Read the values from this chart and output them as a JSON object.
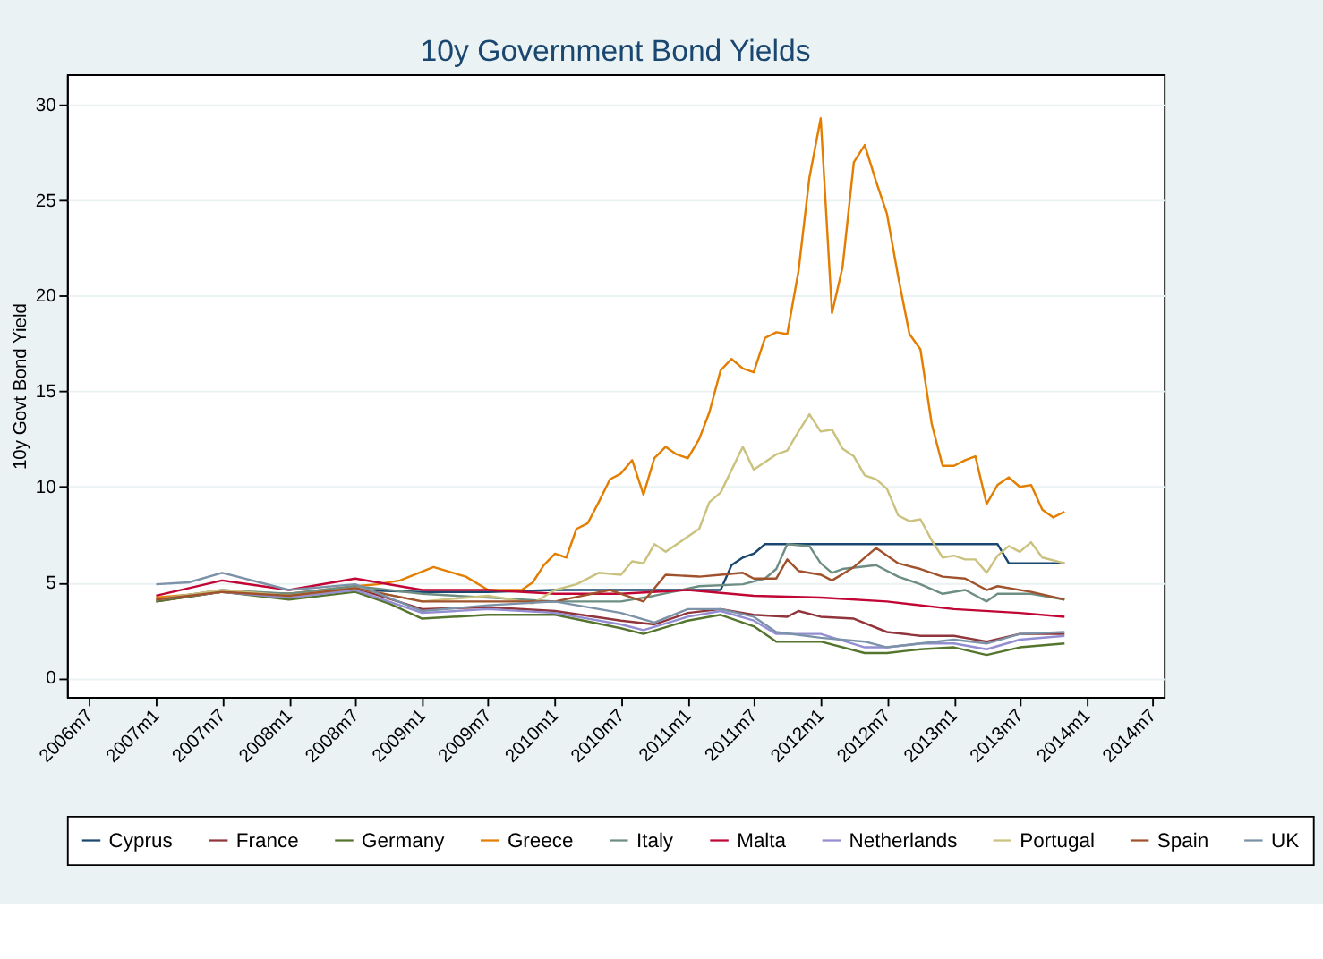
{
  "chart_data": {
    "type": "line",
    "title": "10y Government Bond Yields",
    "ylabel": "10y Govt Bond Yield",
    "xlim": [
      "2006-05",
      "2014-08"
    ],
    "xticks": [
      {
        "value": "2006-07",
        "label": "2006m7"
      },
      {
        "value": "2007-01",
        "label": "2007m1"
      },
      {
        "value": "2007-07",
        "label": "2007m7"
      },
      {
        "value": "2008-01",
        "label": "2008m1"
      },
      {
        "value": "2008-07",
        "label": "2008m7"
      },
      {
        "value": "2009-01",
        "label": "2009m1"
      },
      {
        "value": "2009-07",
        "label": "2009m7"
      },
      {
        "value": "2010-01",
        "label": "2010m1"
      },
      {
        "value": "2010-07",
        "label": "2010m7"
      },
      {
        "value": "2011-01",
        "label": "2011m1"
      },
      {
        "value": "2011-07",
        "label": "2011m7"
      },
      {
        "value": "2012-01",
        "label": "2012m1"
      },
      {
        "value": "2012-07",
        "label": "2012m7"
      },
      {
        "value": "2013-01",
        "label": "2013m1"
      },
      {
        "value": "2013-07",
        "label": "2013m7"
      },
      {
        "value": "2014-01",
        "label": "2014m1"
      },
      {
        "value": "2014-07",
        "label": "2014m7"
      }
    ],
    "ylim": [
      -1,
      31.6
    ],
    "yticks": [
      0,
      5,
      10,
      15,
      20,
      25,
      30
    ],
    "grid": "y",
    "legend": "bottom",
    "line_style": "solid",
    "marker": "none",
    "series": [
      {
        "name": "Cyprus",
        "color": "#1a476f",
        "x": [
          "2007-01",
          "2007-07",
          "2008-01",
          "2008-07",
          "2009-01",
          "2009-07",
          "2010-01",
          "2010-07",
          "2011-01",
          "2011-04",
          "2011-05",
          "2011-06",
          "2011-07",
          "2011-08",
          "2013-05",
          "2013-06",
          "2013-11"
        ],
        "values": [
          4.1,
          4.5,
          4.4,
          4.6,
          4.5,
          4.5,
          4.6,
          4.6,
          4.6,
          4.6,
          5.9,
          6.3,
          6.5,
          7.0,
          7.0,
          6.0,
          6.0
        ]
      },
      {
        "name": "France",
        "color": "#90353b",
        "x": [
          "2007-01",
          "2007-07",
          "2008-01",
          "2008-07",
          "2009-01",
          "2009-07",
          "2010-01",
          "2010-07",
          "2010-10",
          "2011-01",
          "2011-04",
          "2011-07",
          "2011-10",
          "2011-11",
          "2012-01",
          "2012-04",
          "2012-07",
          "2012-10",
          "2013-01",
          "2013-04",
          "2013-07",
          "2013-11"
        ],
        "values": [
          4.0,
          4.5,
          4.2,
          4.7,
          3.6,
          3.7,
          3.5,
          3.0,
          2.8,
          3.4,
          3.6,
          3.3,
          3.2,
          3.5,
          3.2,
          3.1,
          2.4,
          2.2,
          2.2,
          1.9,
          2.3,
          2.3
        ]
      },
      {
        "name": "Germany",
        "color": "#55752f",
        "x": [
          "2007-01",
          "2007-07",
          "2008-01",
          "2008-07",
          "2008-10",
          "2009-01",
          "2009-07",
          "2010-01",
          "2010-07",
          "2010-09",
          "2011-01",
          "2011-04",
          "2011-07",
          "2011-09",
          "2012-01",
          "2012-05",
          "2012-07",
          "2012-10",
          "2013-01",
          "2013-04",
          "2013-07",
          "2013-11"
        ],
        "values": [
          4.0,
          4.5,
          4.1,
          4.5,
          3.9,
          3.1,
          3.3,
          3.3,
          2.6,
          2.3,
          3.0,
          3.3,
          2.7,
          1.9,
          1.9,
          1.3,
          1.3,
          1.5,
          1.6,
          1.2,
          1.6,
          1.8
        ]
      },
      {
        "name": "Greece",
        "color": "#e37e00",
        "x": [
          "2007-01",
          "2007-07",
          "2008-01",
          "2008-07",
          "2008-09",
          "2008-11",
          "2009-02",
          "2009-05",
          "2009-07",
          "2009-10",
          "2009-11",
          "2009-12",
          "2010-01",
          "2010-02",
          "2010-03",
          "2010-04",
          "2010-05",
          "2010-06",
          "2010-07",
          "2010-08",
          "2010-09",
          "2010-10",
          "2010-11",
          "2010-12",
          "2011-01",
          "2011-02",
          "2011-03",
          "2011-04",
          "2011-05",
          "2011-06",
          "2011-07",
          "2011-08",
          "2011-09",
          "2011-10",
          "2011-11",
          "2011-12",
          "2012-01",
          "2012-02",
          "2012-03",
          "2012-04",
          "2012-05",
          "2012-06",
          "2012-07",
          "2012-08",
          "2012-09",
          "2012-10",
          "2012-11",
          "2012-12",
          "2013-01",
          "2013-02",
          "2013-03",
          "2013-04",
          "2013-05",
          "2013-06",
          "2013-07",
          "2013-08",
          "2013-09",
          "2013-10",
          "2013-11"
        ],
        "values": [
          4.2,
          4.5,
          4.4,
          4.8,
          4.9,
          5.1,
          5.8,
          5.3,
          4.6,
          4.6,
          5.0,
          5.9,
          6.5,
          6.3,
          7.8,
          8.1,
          9.2,
          10.4,
          10.7,
          11.4,
          9.6,
          11.5,
          12.1,
          11.7,
          11.5,
          12.5,
          13.9,
          16.1,
          16.7,
          16.2,
          16.0,
          17.8,
          18.1,
          18.0,
          21.3,
          26.2,
          29.3,
          19.1,
          21.5,
          27.0,
          27.9,
          26.0,
          24.3,
          21.0,
          18.0,
          17.2,
          13.3,
          11.1,
          11.1,
          11.4,
          11.6,
          9.1,
          10.1,
          10.5,
          10.0,
          10.1,
          8.8,
          8.4,
          8.7
        ]
      },
      {
        "name": "Italy",
        "color": "#6e8e84",
        "x": [
          "2007-01",
          "2007-07",
          "2008-01",
          "2008-07",
          "2009-01",
          "2009-07",
          "2010-01",
          "2010-07",
          "2010-10",
          "2011-02",
          "2011-06",
          "2011-08",
          "2011-09",
          "2011-10",
          "2011-12",
          "2012-01",
          "2012-02",
          "2012-03",
          "2012-06",
          "2012-08",
          "2012-10",
          "2012-12",
          "2013-02",
          "2013-04",
          "2013-05",
          "2013-08",
          "2013-11"
        ],
        "values": [
          4.1,
          4.6,
          4.4,
          4.8,
          4.4,
          4.2,
          4.0,
          4.0,
          4.3,
          4.8,
          4.9,
          5.2,
          5.7,
          7.0,
          6.9,
          6.0,
          5.5,
          5.7,
          5.9,
          5.3,
          4.9,
          4.4,
          4.6,
          4.0,
          4.4,
          4.4,
          4.1
        ]
      },
      {
        "name": "Malta",
        "color": "#c10534",
        "x": [
          "2007-01",
          "2007-07",
          "2008-01",
          "2008-07",
          "2009-01",
          "2009-07",
          "2010-01",
          "2010-07",
          "2011-01",
          "2011-07",
          "2012-01",
          "2012-07",
          "2013-01",
          "2013-07",
          "2013-11"
        ],
        "values": [
          4.3,
          5.1,
          4.6,
          5.2,
          4.6,
          4.6,
          4.4,
          4.4,
          4.6,
          4.3,
          4.2,
          4.0,
          3.6,
          3.4,
          3.2
        ]
      },
      {
        "name": "Netherlands",
        "color": "#938dd2",
        "x": [
          "2007-01",
          "2007-07",
          "2008-01",
          "2008-07",
          "2008-10",
          "2009-01",
          "2009-07",
          "2010-01",
          "2010-07",
          "2010-09",
          "2011-01",
          "2011-04",
          "2011-07",
          "2011-09",
          "2012-01",
          "2012-05",
          "2012-07",
          "2012-10",
          "2013-01",
          "2013-04",
          "2013-07",
          "2013-11"
        ],
        "values": [
          4.1,
          4.5,
          4.2,
          4.6,
          4.0,
          3.4,
          3.6,
          3.4,
          2.8,
          2.5,
          3.2,
          3.5,
          3.0,
          2.3,
          2.3,
          1.6,
          1.6,
          1.8,
          1.8,
          1.5,
          2.0,
          2.2
        ]
      },
      {
        "name": "Portugal",
        "color": "#cac27e",
        "x": [
          "2007-01",
          "2007-07",
          "2008-01",
          "2008-07",
          "2009-01",
          "2009-07",
          "2009-11",
          "2010-01",
          "2010-03",
          "2010-05",
          "2010-07",
          "2010-08",
          "2010-09",
          "2010-10",
          "2010-11",
          "2011-02",
          "2011-03",
          "2011-04",
          "2011-06",
          "2011-07",
          "2011-09",
          "2011-10",
          "2011-11",
          "2011-12",
          "2012-01",
          "2012-02",
          "2012-03",
          "2012-04",
          "2012-05",
          "2012-06",
          "2012-07",
          "2012-08",
          "2012-09",
          "2012-10",
          "2012-11",
          "2012-12",
          "2013-01",
          "2013-02",
          "2013-03",
          "2013-04",
          "2013-05",
          "2013-06",
          "2013-07",
          "2013-08",
          "2013-09",
          "2013-11"
        ],
        "values": [
          4.1,
          4.6,
          4.3,
          4.7,
          4.0,
          4.3,
          3.9,
          4.6,
          4.9,
          5.5,
          5.4,
          6.1,
          6.0,
          7.0,
          6.6,
          7.8,
          9.2,
          9.7,
          12.1,
          10.9,
          11.7,
          11.9,
          12.9,
          13.8,
          12.9,
          13.0,
          12.0,
          11.6,
          10.6,
          10.4,
          9.9,
          8.5,
          8.2,
          8.3,
          7.2,
          6.3,
          6.4,
          6.2,
          6.2,
          5.5,
          6.4,
          6.9,
          6.6,
          7.1,
          6.3,
          6.0
        ]
      },
      {
        "name": "Spain",
        "color": "#a0522d",
        "x": [
          "2007-01",
          "2007-07",
          "2008-01",
          "2008-07",
          "2009-01",
          "2009-07",
          "2010-01",
          "2010-06",
          "2010-09",
          "2010-11",
          "2011-02",
          "2011-04",
          "2011-06",
          "2011-07",
          "2011-09",
          "2011-10",
          "2011-11",
          "2012-01",
          "2012-02",
          "2012-04",
          "2012-06",
          "2012-08",
          "2012-10",
          "2012-12",
          "2013-02",
          "2013-04",
          "2013-05",
          "2013-08",
          "2013-11"
        ],
        "values": [
          4.1,
          4.5,
          4.3,
          4.7,
          4.0,
          4.0,
          4.0,
          4.6,
          4.0,
          5.4,
          5.3,
          5.4,
          5.5,
          5.2,
          5.2,
          6.2,
          5.6,
          5.4,
          5.1,
          5.8,
          6.8,
          6.0,
          5.7,
          5.3,
          5.2,
          4.6,
          4.8,
          4.5,
          4.1
        ]
      },
      {
        "name": "UK",
        "color": "#7b92a8",
        "x": [
          "2007-01",
          "2007-04",
          "2007-07",
          "2008-01",
          "2008-07",
          "2009-01",
          "2009-07",
          "2010-01",
          "2010-07",
          "2010-10",
          "2011-01",
          "2011-04",
          "2011-07",
          "2011-09",
          "2012-01",
          "2012-05",
          "2012-07",
          "2012-10",
          "2013-01",
          "2013-04",
          "2013-07",
          "2013-11"
        ],
        "values": [
          4.9,
          5.0,
          5.5,
          4.6,
          4.9,
          3.5,
          3.8,
          4.0,
          3.4,
          2.9,
          3.6,
          3.6,
          3.2,
          2.4,
          2.1,
          1.9,
          1.6,
          1.8,
          2.0,
          1.8,
          2.3,
          2.4
        ]
      }
    ]
  }
}
